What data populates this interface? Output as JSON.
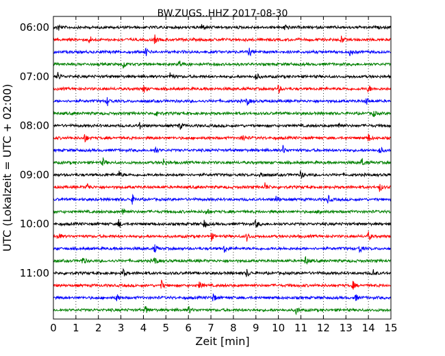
{
  "chart_data": {
    "type": "line",
    "title": "BW.ZUGS..HHZ 2017-08-30",
    "xlabel": "Zeit  [min]",
    "ylabel": "UTC (Lokalzeit = UTC + 02:00)",
    "xlim": [
      0,
      15
    ],
    "x_ticks": [
      "0",
      "1",
      "2",
      "3",
      "4",
      "5",
      "6",
      "7",
      "8",
      "9",
      "10",
      "11",
      "12",
      "13",
      "14",
      "15"
    ],
    "y_tick_labels": [
      "06:00",
      "07:00",
      "08:00",
      "09:00",
      "10:00",
      "11:00"
    ],
    "grid": "vertical-dotted",
    "trace_colors": [
      "#000000",
      "#ff0000",
      "#0000ff",
      "#008000"
    ],
    "series": [
      {
        "start": "06:00",
        "events_min": [
          10.3,
          0.2,
          6.6
        ]
      },
      {
        "start": "06:15",
        "events_min": [
          4.5,
          12.8,
          1.6
        ]
      },
      {
        "start": "06:30",
        "events_min": [
          4.1,
          13.2,
          8.7
        ]
      },
      {
        "start": "06:45",
        "events_min": [
          5.6,
          3.1
        ]
      },
      {
        "start": "07:00",
        "events_min": [
          0.2,
          9.0,
          5.2
        ]
      },
      {
        "start": "07:15",
        "events_min": [
          4.0,
          14.0,
          10.0
        ]
      },
      {
        "start": "07:30",
        "events_min": [
          8.6,
          13.9,
          2.4
        ]
      },
      {
        "start": "07:45",
        "events_min": [
          4.6,
          14.2
        ]
      },
      {
        "start": "08:00",
        "events_min": [
          5.6,
          12.7,
          3.8
        ]
      },
      {
        "start": "08:15",
        "events_min": [
          1.4,
          8.4,
          14.0
        ]
      },
      {
        "start": "08:30",
        "events_min": [
          4.5,
          14.5,
          10.2
        ]
      },
      {
        "start": "08:45",
        "events_min": [
          4.9,
          13.7,
          2.2
        ]
      },
      {
        "start": "09:00",
        "events_min": [
          2.9,
          9.2,
          11.0
        ]
      },
      {
        "start": "09:15",
        "events_min": [
          1.5,
          9.4,
          14.5
        ]
      },
      {
        "start": "09:30",
        "events_min": [
          9.9,
          3.5,
          12.2
        ]
      },
      {
        "start": "09:45",
        "events_min": [
          3.1,
          11.8,
          6.8
        ]
      },
      {
        "start": "10:00",
        "events_min": [
          2.9,
          9.0,
          6.7
        ]
      },
      {
        "start": "10:15",
        "events_min": [
          0.2,
          7.0,
          8.6,
          14.0
        ]
      },
      {
        "start": "10:30",
        "events_min": [
          7.6,
          13.6,
          4.5
        ]
      },
      {
        "start": "10:45",
        "events_min": [
          4.5,
          11.2,
          1.3
        ]
      },
      {
        "start": "11:00",
        "events_min": [
          3.1,
          8.6,
          14.2
        ]
      },
      {
        "start": "11:15",
        "events_min": [
          4.8,
          6.5,
          13.3
        ]
      },
      {
        "start": "11:30",
        "events_min": [
          13.4,
          7.1,
          2.8
        ]
      },
      {
        "start": "11:45",
        "events_min": [
          4.1,
          10.8,
          6.0
        ]
      }
    ]
  }
}
